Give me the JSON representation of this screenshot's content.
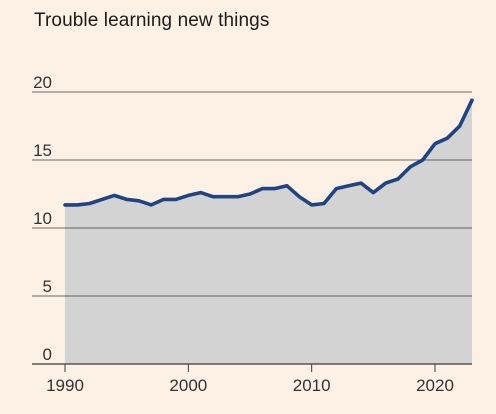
{
  "colors": {
    "background": "#fdf1e6",
    "area_fill": "#d3d3d3",
    "line": "#1f4383",
    "gridline": "#3a3a3a",
    "tick_text": "#333333"
  },
  "chart_data": {
    "type": "area",
    "title": "Trouble learning new things",
    "xlabel": "",
    "ylabel": "",
    "xlim": [
      1990,
      2023
    ],
    "ylim": [
      0,
      20
    ],
    "x_ticks": [
      1990,
      2000,
      2010,
      2020
    ],
    "y_ticks": [
      0,
      5,
      10,
      15,
      20
    ],
    "x_tick_labels": [
      "1990",
      "2000",
      "2010",
      "2020"
    ],
    "y_tick_labels": [
      "0",
      "5",
      "10",
      "15",
      "20"
    ],
    "grid": "horizontal",
    "legend": "none",
    "series": [
      {
        "x": [
          1990,
          1991,
          1992,
          1993,
          1994,
          1995,
          1996,
          1997,
          1998,
          1999,
          2000,
          2001,
          2002,
          2003,
          2004,
          2005,
          2006,
          2007,
          2008,
          2009,
          2010,
          2011,
          2012,
          2013,
          2014,
          2015,
          2016,
          2017,
          2018,
          2019,
          2020,
          2021,
          2022,
          2023
        ],
        "values": [
          11.7,
          11.7,
          11.8,
          12.1,
          12.4,
          12.1,
          12.0,
          11.7,
          12.1,
          12.1,
          12.4,
          12.6,
          12.3,
          12.3,
          12.3,
          12.5,
          12.9,
          12.9,
          13.1,
          12.3,
          11.7,
          11.8,
          12.9,
          13.1,
          13.3,
          12.6,
          13.3,
          13.6,
          14.5,
          15.0,
          16.2,
          16.6,
          17.5,
          19.4
        ]
      }
    ]
  }
}
